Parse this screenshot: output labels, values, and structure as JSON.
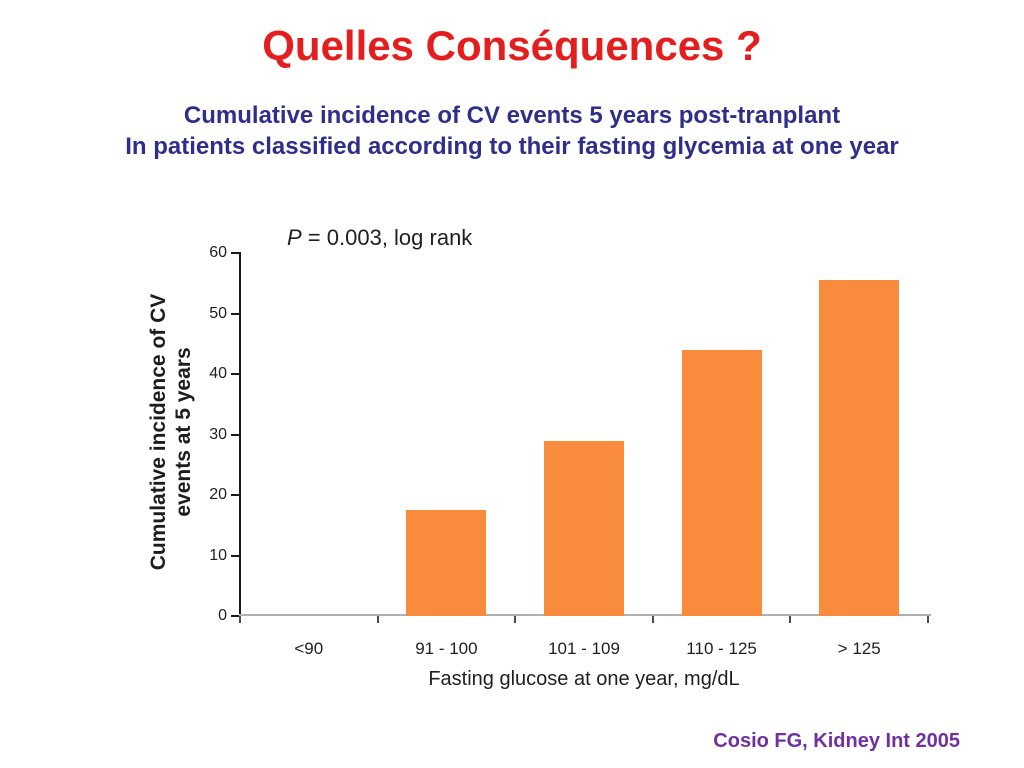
{
  "slide": {
    "title": "Quelles Conséquences ?",
    "subtitle_line1": "Cumulative incidence of CV events 5 years post-tranplant",
    "subtitle_line2": "In patients classified according to their fasting glycemia at one year",
    "citation": "Cosio FG, Kidney Int 2005",
    "colors": {
      "background": "#ffffff",
      "title": "#e41e1e",
      "subtitle": "#2f2f8a",
      "citation": "#7030a0"
    }
  },
  "chart_data": {
    "type": "bar",
    "annotation": {
      "symbol": "P",
      "rest": " = 0.003, log rank"
    },
    "categories": [
      "<90",
      "91 - 100",
      "101 - 109",
      "110 - 125",
      "> 125"
    ],
    "values": [
      0,
      17.5,
      29,
      44,
      55.5
    ],
    "xlabel": "Fasting glucose at one year, mg/dL",
    "ylabel_line1": "Cumulative incidence of CV",
    "ylabel_line2": "events at 5 years",
    "ylim": [
      0,
      60
    ],
    "yticks": [
      0,
      10,
      20,
      30,
      40,
      50,
      60
    ],
    "grid": false,
    "legend": "none",
    "bar_color": "#f98b3c",
    "x_axis_color": "#b0b0b0",
    "y_axis_color": "#1a1a1a"
  }
}
